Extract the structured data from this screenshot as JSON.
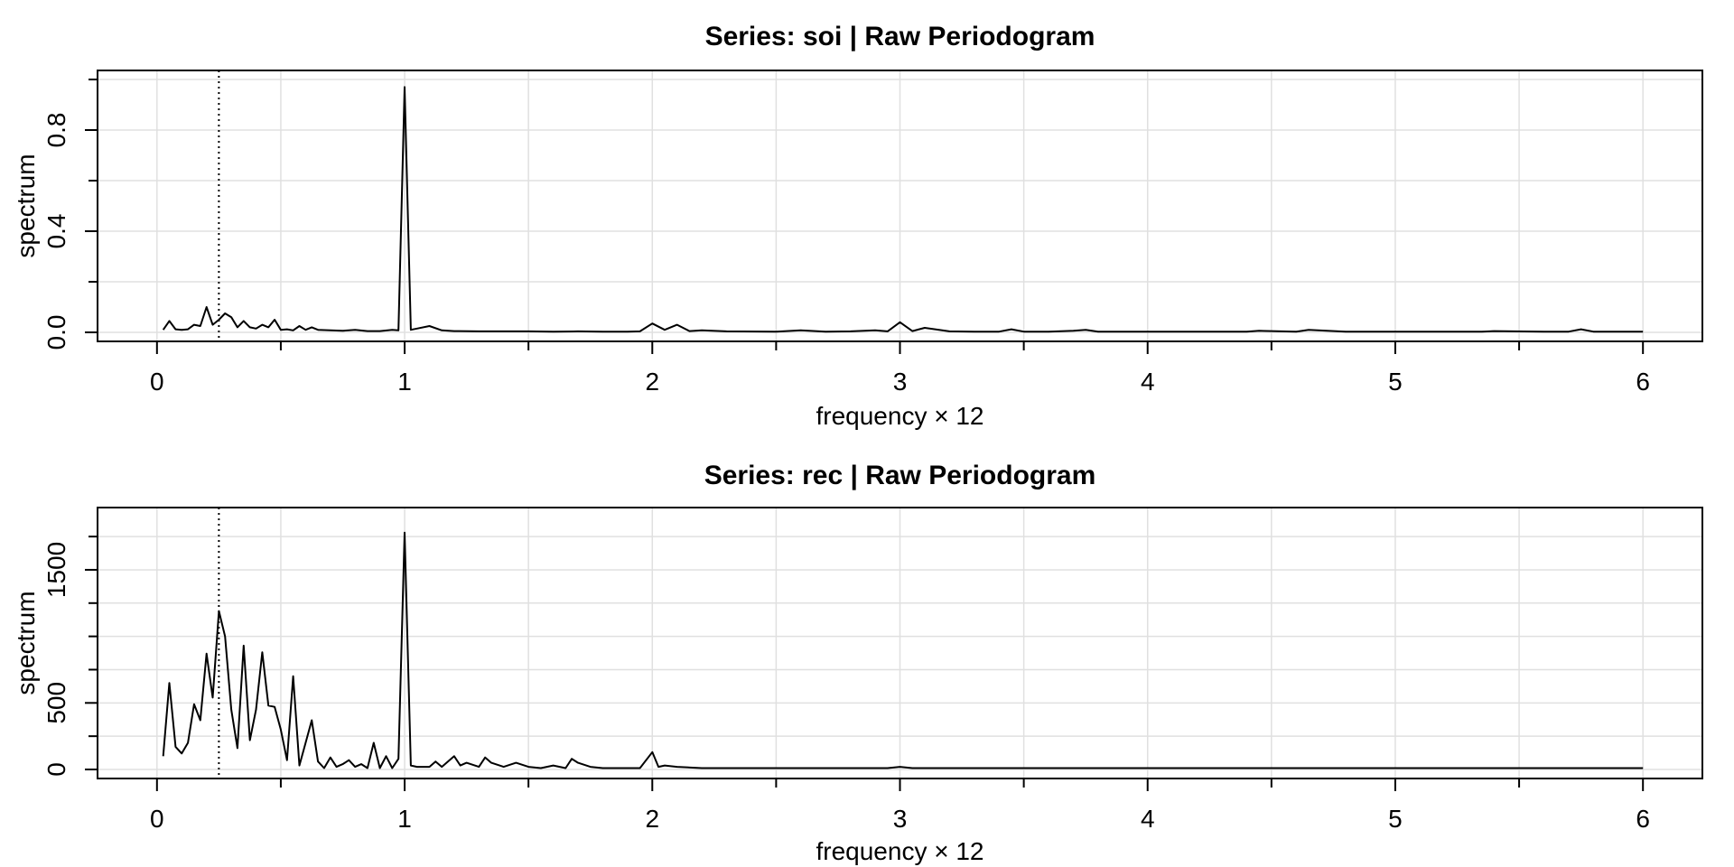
{
  "chart_data": [
    {
      "type": "line",
      "title": "Series: soi  |  Raw Periodogram",
      "xlabel": "frequency × 12",
      "ylabel": "spectrum",
      "xlim": [
        0,
        6
      ],
      "ylim": [
        0,
        1.0
      ],
      "xticks": [
        "0",
        "1",
        "2",
        "3",
        "4",
        "5",
        "6"
      ],
      "yticks": [
        "0.0",
        "0.4",
        "0.8"
      ],
      "ytick_values": [
        0.0,
        0.4,
        0.8
      ],
      "grid": true,
      "reference_line_x": 0.25,
      "colors": {
        "line": "#000000",
        "grid": "#e0e0e0"
      },
      "series": [
        {
          "x": [
            0.025,
            0.05,
            0.075,
            0.1,
            0.125,
            0.15,
            0.175,
            0.2,
            0.225,
            0.25,
            0.275,
            0.3,
            0.325,
            0.35,
            0.375,
            0.4,
            0.425,
            0.45,
            0.475,
            0.5,
            0.525,
            0.55,
            0.575,
            0.6,
            0.625,
            0.65,
            0.7,
            0.75,
            0.8,
            0.85,
            0.9,
            0.95,
            0.975,
            1.0,
            1.025,
            1.05,
            1.1,
            1.15,
            1.2,
            1.3,
            1.4,
            1.5,
            1.6,
            1.7,
            1.8,
            1.9,
            1.95,
            2.0,
            2.05,
            2.1,
            2.15,
            2.2,
            2.3,
            2.5,
            2.6,
            2.7,
            2.8,
            2.9,
            2.95,
            3.0,
            3.05,
            3.1,
            3.2,
            3.3,
            3.4,
            3.45,
            3.5,
            3.6,
            3.7,
            3.75,
            3.8,
            3.9,
            4.0,
            4.2,
            4.4,
            4.45,
            4.6,
            4.65,
            4.8,
            5.0,
            5.2,
            5.35,
            5.4,
            5.6,
            5.7,
            5.75,
            5.8,
            5.9,
            6.0
          ],
          "y": [
            0.01,
            0.045,
            0.012,
            0.01,
            0.012,
            0.03,
            0.025,
            0.1,
            0.03,
            0.05,
            0.075,
            0.06,
            0.02,
            0.045,
            0.02,
            0.015,
            0.03,
            0.02,
            0.05,
            0.01,
            0.012,
            0.008,
            0.025,
            0.01,
            0.02,
            0.01,
            0.008,
            0.006,
            0.01,
            0.005,
            0.005,
            0.01,
            0.008,
            0.97,
            0.01,
            0.015,
            0.025,
            0.008,
            0.005,
            0.004,
            0.004,
            0.004,
            0.003,
            0.004,
            0.003,
            0.003,
            0.004,
            0.035,
            0.01,
            0.03,
            0.005,
            0.008,
            0.004,
            0.003,
            0.008,
            0.003,
            0.004,
            0.008,
            0.004,
            0.04,
            0.005,
            0.018,
            0.004,
            0.003,
            0.003,
            0.012,
            0.003,
            0.003,
            0.006,
            0.01,
            0.003,
            0.003,
            0.003,
            0.003,
            0.003,
            0.006,
            0.003,
            0.01,
            0.003,
            0.003,
            0.003,
            0.003,
            0.005,
            0.003,
            0.003,
            0.012,
            0.003,
            0.003,
            0.003
          ]
        }
      ]
    },
    {
      "type": "line",
      "title": "Series: rec  |  Raw Periodogram",
      "xlabel": "frequency × 12",
      "ylabel": "spectrum",
      "xlim": [
        0,
        6
      ],
      "ylim": [
        0,
        1900
      ],
      "xticks": [
        "0",
        "1",
        "2",
        "3",
        "4",
        "5",
        "6"
      ],
      "yticks": [
        "0",
        "500",
        "1500"
      ],
      "ytick_values": [
        0,
        500,
        1500
      ],
      "grid": true,
      "reference_line_x": 0.25,
      "colors": {
        "line": "#000000",
        "grid": "#e0e0e0"
      },
      "series": [
        {
          "x": [
            0.025,
            0.05,
            0.075,
            0.1,
            0.125,
            0.15,
            0.175,
            0.2,
            0.225,
            0.25,
            0.275,
            0.3,
            0.325,
            0.35,
            0.375,
            0.4,
            0.425,
            0.45,
            0.475,
            0.5,
            0.525,
            0.55,
            0.575,
            0.6,
            0.625,
            0.65,
            0.675,
            0.7,
            0.725,
            0.75,
            0.775,
            0.8,
            0.825,
            0.85,
            0.875,
            0.9,
            0.925,
            0.95,
            0.975,
            1.0,
            1.025,
            1.05,
            1.1,
            1.125,
            1.15,
            1.2,
            1.225,
            1.25,
            1.3,
            1.325,
            1.35,
            1.4,
            1.45,
            1.5,
            1.55,
            1.6,
            1.65,
            1.675,
            1.7,
            1.75,
            1.8,
            1.9,
            1.95,
            2.0,
            2.025,
            2.05,
            2.1,
            2.2,
            2.3,
            2.4,
            2.5,
            2.6,
            2.7,
            2.8,
            2.9,
            2.95,
            3.0,
            3.05,
            3.2,
            3.4,
            3.45,
            3.5,
            3.7,
            3.8,
            3.9,
            4.0,
            4.2,
            4.4,
            4.6,
            4.8,
            5.0,
            5.2,
            5.4,
            5.6,
            5.8,
            6.0
          ],
          "y": [
            100,
            650,
            170,
            120,
            200,
            490,
            370,
            870,
            540,
            1190,
            1000,
            450,
            160,
            930,
            220,
            450,
            880,
            480,
            470,
            300,
            70,
            700,
            30,
            200,
            370,
            60,
            10,
            90,
            20,
            40,
            70,
            20,
            40,
            10,
            200,
            10,
            100,
            10,
            80,
            1780,
            30,
            20,
            20,
            60,
            20,
            100,
            30,
            50,
            20,
            90,
            50,
            20,
            50,
            20,
            10,
            30,
            10,
            80,
            50,
            20,
            10,
            10,
            10,
            130,
            20,
            30,
            20,
            10,
            10,
            10,
            10,
            10,
            10,
            10,
            10,
            10,
            20,
            10,
            10,
            10,
            10,
            10,
            10,
            10,
            10,
            10,
            10,
            10,
            10,
            10,
            10,
            10,
            10,
            10,
            10,
            10
          ]
        }
      ]
    }
  ]
}
